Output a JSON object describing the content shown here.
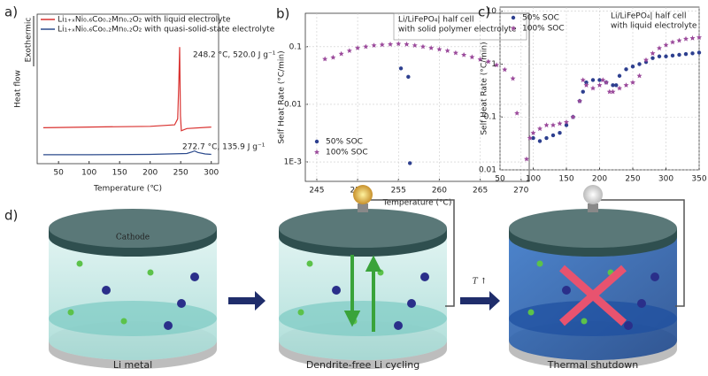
{
  "chart_data": [
    {
      "type": "line",
      "label": "a)",
      "xlabel": "Temperature (℃)",
      "ylabel": "Heat flow",
      "direction": "Exothermic",
      "xlim": [
        15,
        312
      ],
      "ylim": [
        0,
        10
      ],
      "xticks": [
        50,
        100,
        150,
        200,
        250,
        300
      ],
      "grid": false,
      "series": [
        {
          "name": "Li₁₊ₓNi₀.₆Co₀.₂Mn₀.₂O₂ with liquid electrolyte",
          "color": "#d9312f",
          "x": [
            25,
            100,
            200,
            240,
            245,
            247,
            248.2,
            249.5,
            251,
            260,
            300
          ],
          "values": [
            2.4,
            2.45,
            2.5,
            2.6,
            3.0,
            5.5,
            7.8,
            3.2,
            2.2,
            2.35,
            2.45
          ]
        },
        {
          "name": "Li₁₊ₓNi₀.₆Co₀.₂Mn₀.₂O₂ with quasi-solid-state electrolyte",
          "color": "#2b4a8c",
          "x": [
            25,
            100,
            200,
            260,
            268,
            272.7,
            278,
            290,
            300
          ],
          "values": [
            0.6,
            0.6,
            0.62,
            0.68,
            0.78,
            0.85,
            0.75,
            0.65,
            0.62
          ]
        }
      ],
      "annotations": [
        "248.2 °C, 520.0 J g⁻¹",
        "272.7 °C, 135.9 J g⁻¹"
      ]
    },
    {
      "type": "scatter",
      "label": "b)",
      "xlabel": "Temperature (°C)",
      "ylabel": "Self Heat Rate (°C/min)",
      "note": [
        "Li/LiFePO₄| half cell",
        "with solid polymer electrolyte"
      ],
      "xlim": [
        243.6,
        271
      ],
      "ylim": [
        0.00046,
        0.38
      ],
      "log_y": true,
      "grid": true,
      "legend": "lower left",
      "xticks": [
        245,
        250,
        255,
        260,
        265,
        270
      ],
      "yticks": [
        0.1,
        0.01,
        {
          "value": 0.001,
          "label": "1E-3"
        }
      ],
      "series": [
        {
          "name": "50% SOC",
          "color": "#2d3f8f",
          "marker": "circle",
          "x": [
            255.3,
            256.2,
            256.4
          ],
          "values": [
            0.042,
            0.03,
            0.00095
          ]
        },
        {
          "name": "100% SOC",
          "color": "#9b4a9b",
          "marker": "star",
          "x": [
            246,
            247,
            248,
            249,
            250,
            251,
            252,
            253,
            254,
            255,
            256,
            257,
            258,
            259,
            260,
            261,
            262,
            263,
            264,
            265,
            266,
            267,
            268,
            269,
            269.5
          ],
          "values": [
            0.061,
            0.065,
            0.075,
            0.085,
            0.095,
            0.1,
            0.105,
            0.108,
            0.11,
            0.112,
            0.11,
            0.105,
            0.1,
            0.095,
            0.09,
            0.085,
            0.078,
            0.072,
            0.066,
            0.06,
            0.055,
            0.048,
            0.04,
            0.028,
            0.007
          ]
        }
      ]
    },
    {
      "type": "scatter",
      "label": "c)",
      "ylabel": "Self Heat Rate (°C/min)",
      "note": [
        "Li/LiFePO₄| half cell",
        "with liquid electrolyte"
      ],
      "xlim": [
        50,
        350
      ],
      "ylim": [
        0.01,
        12
      ],
      "log_y": true,
      "grid": true,
      "legend": "upper left",
      "xticks": [
        50,
        100,
        150,
        200,
        250,
        300,
        350
      ],
      "yticks": [
        0.01,
        0.1,
        1,
        10
      ],
      "series": [
        {
          "name": "50% SOC",
          "color": "#2d3f8f",
          "marker": "circle",
          "x": [
            100,
            110,
            120,
            130,
            140,
            150,
            160,
            170,
            175,
            180,
            190,
            200,
            210,
            220,
            225,
            230,
            240,
            250,
            260,
            270,
            280,
            290,
            300,
            310,
            320,
            330,
            340,
            350
          ],
          "values": [
            0.04,
            0.035,
            0.04,
            0.045,
            0.05,
            0.07,
            0.1,
            0.2,
            0.3,
            0.45,
            0.5,
            0.5,
            0.45,
            0.4,
            0.4,
            0.6,
            0.8,
            0.9,
            1.0,
            1.1,
            1.3,
            1.4,
            1.4,
            1.45,
            1.5,
            1.55,
            1.6,
            1.65
          ]
        },
        {
          "name": "100% SOC",
          "color": "#9b4a9b",
          "marker": "star",
          "x": [
            90,
            95,
            100,
            110,
            120,
            130,
            140,
            150,
            160,
            170,
            175,
            180,
            190,
            200,
            205,
            210,
            215,
            220,
            230,
            240,
            250,
            260,
            270,
            280,
            290,
            300,
            310,
            320,
            330,
            340,
            350
          ],
          "values": [
            0.016,
            0.04,
            0.05,
            0.06,
            0.07,
            0.07,
            0.075,
            0.08,
            0.1,
            0.2,
            0.5,
            0.4,
            0.35,
            0.4,
            0.5,
            0.45,
            0.3,
            0.3,
            0.35,
            0.4,
            0.45,
            0.6,
            1.2,
            1.6,
            2.0,
            2.3,
            2.6,
            2.8,
            3.0,
            3.1,
            3.2
          ]
        }
      ]
    }
  ],
  "diagram": {
    "label": "d)",
    "cathode": "Cathode",
    "trigger": "T ↑",
    "stages": [
      "Li metal",
      "Dendrite-free Li cycling",
      "Thermal shutdown"
    ]
  }
}
